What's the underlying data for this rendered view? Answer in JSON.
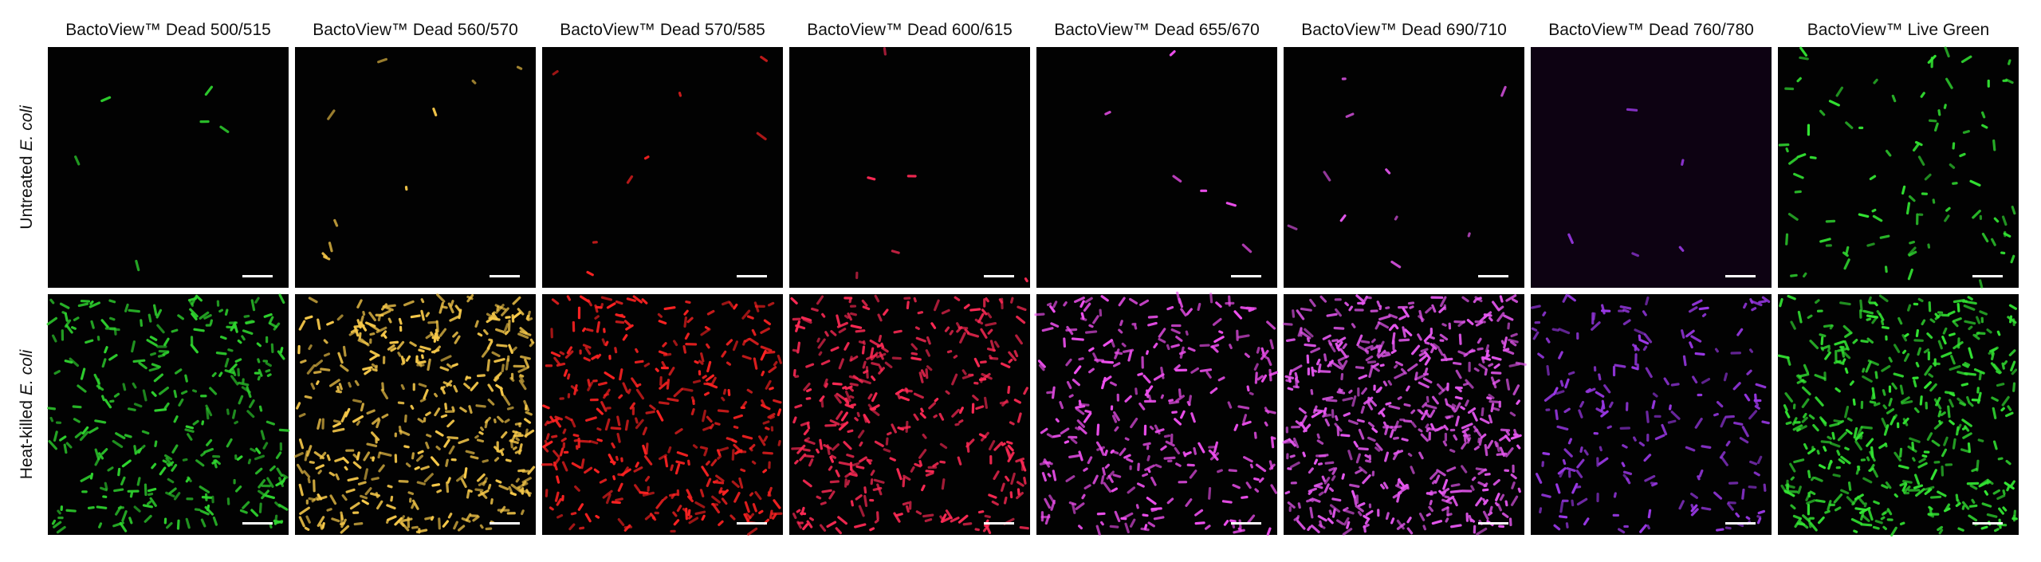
{
  "columns": [
    {
      "title": "BactoView™ Dead 500/515",
      "color": "#2fd62f"
    },
    {
      "title": "BactoView™ Dead 560/570",
      "color": "#f7c94a"
    },
    {
      "title": "BactoView™ Dead 570/585",
      "color": "#ff2222"
    },
    {
      "title": "BactoView™ Dead 600/615",
      "color": "#ff2a55"
    },
    {
      "title": "BactoView™ Dead 655/670",
      "color": "#f050f0"
    },
    {
      "title": "BactoView™ Dead 690/710",
      "color": "#e858f2"
    },
    {
      "title": "BactoView™ Dead 760/780",
      "color": "#9a38e6"
    },
    {
      "title": "BactoView™ Live Green",
      "color": "#33e533"
    }
  ],
  "rows": [
    {
      "label": "Untreated",
      "organism": "E. coli"
    },
    {
      "label": "Heat-killed",
      "organism": "E. coli"
    }
  ]
}
